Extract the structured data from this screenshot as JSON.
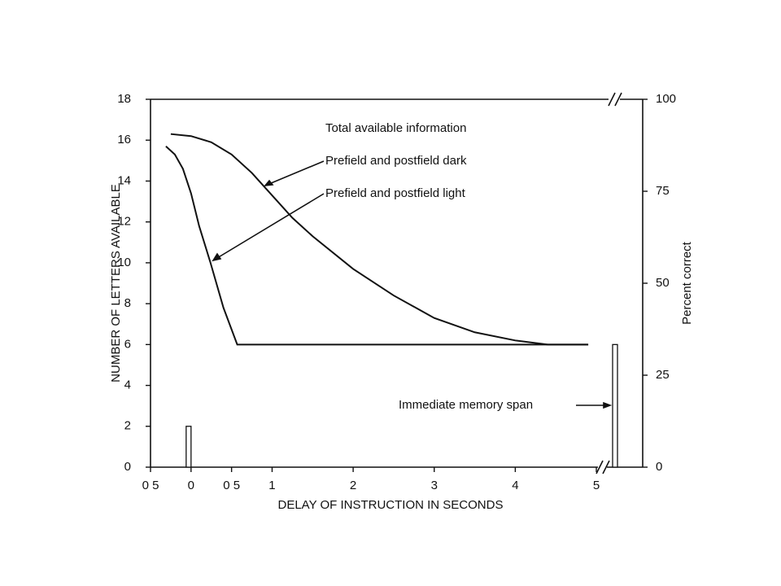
{
  "chart_data": {
    "type": "line",
    "xlabel": "DELAY OF INSTRUCTION IN SECONDS",
    "ylabel": "NUMBER OF LETTERS AVAILABLE",
    "y2label": "Percent correct",
    "annotation": "Total available information",
    "xlim": [
      -0.5,
      5.07
    ],
    "xticks": [
      {
        "value": -0.5,
        "label": "0 5"
      },
      0,
      {
        "value": 0.5,
        "label": "0 5"
      },
      1,
      2,
      3,
      4,
      5
    ],
    "ylim": [
      0,
      18
    ],
    "yticks": [
      0,
      2,
      4,
      6,
      8,
      10,
      12,
      14,
      16,
      18
    ],
    "y2lim": [
      0,
      100
    ],
    "y2ticks": [
      0,
      25,
      50,
      75,
      100
    ],
    "series": [
      {
        "name": "Prefield and postfield dark",
        "color": "#111111",
        "x": [
          -0.25,
          0,
          0.25,
          0.5,
          0.75,
          1,
          1.25,
          1.5,
          2,
          2.5,
          3,
          3.5,
          4,
          4.4,
          4.9
        ],
        "values": [
          16.3,
          16.2,
          15.9,
          15.3,
          14.4,
          13.3,
          12.2,
          11.3,
          9.7,
          8.4,
          7.3,
          6.6,
          6.2,
          6.0,
          6.0
        ]
      },
      {
        "name": "Prefield and postfield light",
        "color": "#111111",
        "x": [
          -0.31,
          -0.2,
          -0.1,
          0,
          0.1,
          0.24,
          0.4,
          0.57,
          1,
          2,
          3,
          4,
          4.9
        ],
        "values": [
          15.7,
          15.3,
          14.6,
          13.4,
          11.8,
          10.0,
          7.8,
          6.0,
          6.0,
          6.0,
          6.0,
          6.0,
          6.0
        ]
      }
    ],
    "bar": {
      "x": -0.03,
      "value": 2
    },
    "memory_span": {
      "label": "Immediate memory span",
      "value": 6
    }
  }
}
